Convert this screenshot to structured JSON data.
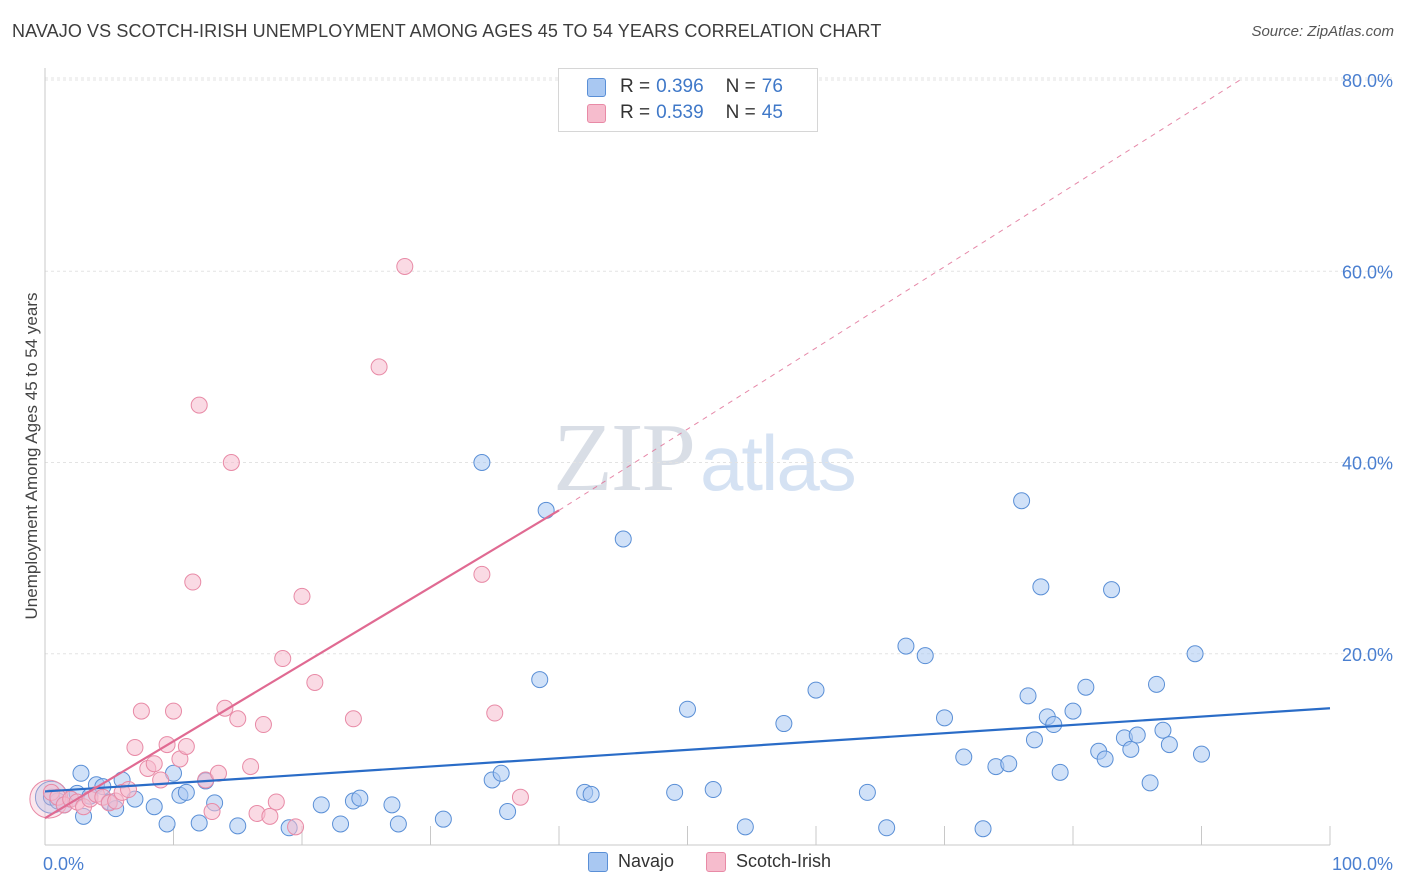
{
  "title": "NAVAJO VS SCOTCH-IRISH UNEMPLOYMENT AMONG AGES 45 TO 54 YEARS CORRELATION CHART",
  "source": "Source: ZipAtlas.com",
  "watermark": {
    "zip": "ZIP",
    "atlas": "atlas"
  },
  "legend": {
    "r_label": "R =",
    "n_label": "N =",
    "rows": [
      {
        "series": "Navajo",
        "r": "0.396",
        "n": "76"
      },
      {
        "series": "Scotch-Irish",
        "r": "0.539",
        "n": "45"
      }
    ]
  },
  "bottom_legend": [
    "Navajo",
    "Scotch-Irish"
  ],
  "colors": {
    "navajo_fill": "#a9c8f2",
    "navajo_stroke": "#5a8fd6",
    "navajo_line": "#2a6cc7",
    "scotch_fill": "#f6bccd",
    "scotch_stroke": "#e88aa6",
    "scotch_line": "#e06a92",
    "tick_text": "#4a7fd0",
    "grid": "#e3e3e3"
  },
  "chart_data": {
    "type": "scatter",
    "title": "NAVAJO VS SCOTCH-IRISH UNEMPLOYMENT AMONG AGES 45 TO 54 YEARS CORRELATION CHART",
    "xlabel": "",
    "ylabel": "Unemployment Among Ages 45 to 54 years",
    "xlim": [
      0,
      100
    ],
    "ylim": [
      0,
      83
    ],
    "x_tick_labels": [
      "0.0%",
      "100.0%"
    ],
    "y_ticks": [
      20,
      40,
      60,
      80
    ],
    "y_tick_labels": [
      "20.0%",
      "40.0%",
      "60.0%",
      "80.0%"
    ],
    "series": [
      {
        "name": "Navajo",
        "r": 0.396,
        "n": 76,
        "trend": {
          "x0": 0,
          "y0": 5.6,
          "x1": 100,
          "y1": 14.3
        },
        "points": [
          [
            0.5,
            5.0
          ],
          [
            1.0,
            4.6
          ],
          [
            1.5,
            4.2
          ],
          [
            2.0,
            4.8
          ],
          [
            2.5,
            5.4
          ],
          [
            3.0,
            3.0
          ],
          [
            3.5,
            5.1
          ],
          [
            2.8,
            7.5
          ],
          [
            4.0,
            6.3
          ],
          [
            4.5,
            6.1
          ],
          [
            5.0,
            4.5
          ],
          [
            5.5,
            3.8
          ],
          [
            6.0,
            6.8
          ],
          [
            7.0,
            4.8
          ],
          [
            8.5,
            4.0
          ],
          [
            9.5,
            2.2
          ],
          [
            10.0,
            7.5
          ],
          [
            10.5,
            5.2
          ],
          [
            11.0,
            5.5
          ],
          [
            12.0,
            2.3
          ],
          [
            12.5,
            6.7
          ],
          [
            13.2,
            4.4
          ],
          [
            15.0,
            2.0
          ],
          [
            19.0,
            1.8
          ],
          [
            21.5,
            4.2
          ],
          [
            23.0,
            2.2
          ],
          [
            24.0,
            4.6
          ],
          [
            24.5,
            4.9
          ],
          [
            27.0,
            4.2
          ],
          [
            27.5,
            2.2
          ],
          [
            31.0,
            2.7
          ],
          [
            34.0,
            40.0
          ],
          [
            34.8,
            6.8
          ],
          [
            35.5,
            7.5
          ],
          [
            36.0,
            3.5
          ],
          [
            38.5,
            17.3
          ],
          [
            39.0,
            35.0
          ],
          [
            42.0,
            5.5
          ],
          [
            42.5,
            5.3
          ],
          [
            45.0,
            32.0
          ],
          [
            49.0,
            5.5
          ],
          [
            50.0,
            14.2
          ],
          [
            52.0,
            5.8
          ],
          [
            54.5,
            1.9
          ],
          [
            57.5,
            12.7
          ],
          [
            60.0,
            16.2
          ],
          [
            64.0,
            5.5
          ],
          [
            65.5,
            1.8
          ],
          [
            67.0,
            20.8
          ],
          [
            68.5,
            19.8
          ],
          [
            70.0,
            13.3
          ],
          [
            71.5,
            9.2
          ],
          [
            73.0,
            1.7
          ],
          [
            74.0,
            8.2
          ],
          [
            75.0,
            8.5
          ],
          [
            76.0,
            36.0
          ],
          [
            76.5,
            15.6
          ],
          [
            77.0,
            11.0
          ],
          [
            77.5,
            27.0
          ],
          [
            78.0,
            13.4
          ],
          [
            78.5,
            12.6
          ],
          [
            79.0,
            7.6
          ],
          [
            80.0,
            14.0
          ],
          [
            81.0,
            16.5
          ],
          [
            82.0,
            9.8
          ],
          [
            82.5,
            9.0
          ],
          [
            83.0,
            26.7
          ],
          [
            84.0,
            11.2
          ],
          [
            84.5,
            10.0
          ],
          [
            85.0,
            11.5
          ],
          [
            86.0,
            6.5
          ],
          [
            86.5,
            16.8
          ],
          [
            87.0,
            12.0
          ],
          [
            87.5,
            10.5
          ],
          [
            89.5,
            20.0
          ],
          [
            90.0,
            9.5
          ]
        ]
      },
      {
        "name": "Scotch-Irish",
        "r": 0.539,
        "n": 45,
        "trend": {
          "x0": 0,
          "y0": 2.8,
          "x1": 40,
          "y1": 35.0
        },
        "dashed_extension": {
          "x0": 40,
          "y0": 35.0,
          "x1": 93,
          "y1": 80.0
        },
        "points": [
          [
            0.5,
            5.5
          ],
          [
            1.0,
            5.0
          ],
          [
            1.5,
            4.2
          ],
          [
            2.0,
            4.8
          ],
          [
            2.5,
            4.5
          ],
          [
            3.0,
            4.0
          ],
          [
            3.5,
            4.8
          ],
          [
            4.0,
            5.3
          ],
          [
            4.5,
            5.0
          ],
          [
            5.0,
            4.4
          ],
          [
            5.5,
            4.6
          ],
          [
            6.0,
            5.5
          ],
          [
            6.5,
            5.8
          ],
          [
            7.0,
            10.2
          ],
          [
            7.5,
            14.0
          ],
          [
            8.0,
            8.0
          ],
          [
            8.5,
            8.5
          ],
          [
            9.0,
            6.8
          ],
          [
            9.5,
            10.5
          ],
          [
            10.0,
            14.0
          ],
          [
            10.5,
            9.0
          ],
          [
            11.0,
            10.3
          ],
          [
            11.5,
            27.5
          ],
          [
            12.0,
            46.0
          ],
          [
            12.5,
            6.8
          ],
          [
            13.0,
            3.5
          ],
          [
            13.5,
            7.5
          ],
          [
            14.0,
            14.3
          ],
          [
            14.5,
            40.0
          ],
          [
            15.0,
            13.2
          ],
          [
            16.0,
            8.2
          ],
          [
            16.5,
            3.3
          ],
          [
            17.0,
            12.6
          ],
          [
            17.5,
            3.0
          ],
          [
            18.0,
            4.5
          ],
          [
            18.5,
            19.5
          ],
          [
            19.5,
            1.9
          ],
          [
            20.0,
            26.0
          ],
          [
            21.0,
            17.0
          ],
          [
            24.0,
            13.2
          ],
          [
            26.0,
            50.0
          ],
          [
            28.0,
            60.5
          ],
          [
            34.0,
            28.3
          ],
          [
            35.0,
            13.8
          ],
          [
            37.0,
            5.0
          ]
        ]
      }
    ]
  }
}
